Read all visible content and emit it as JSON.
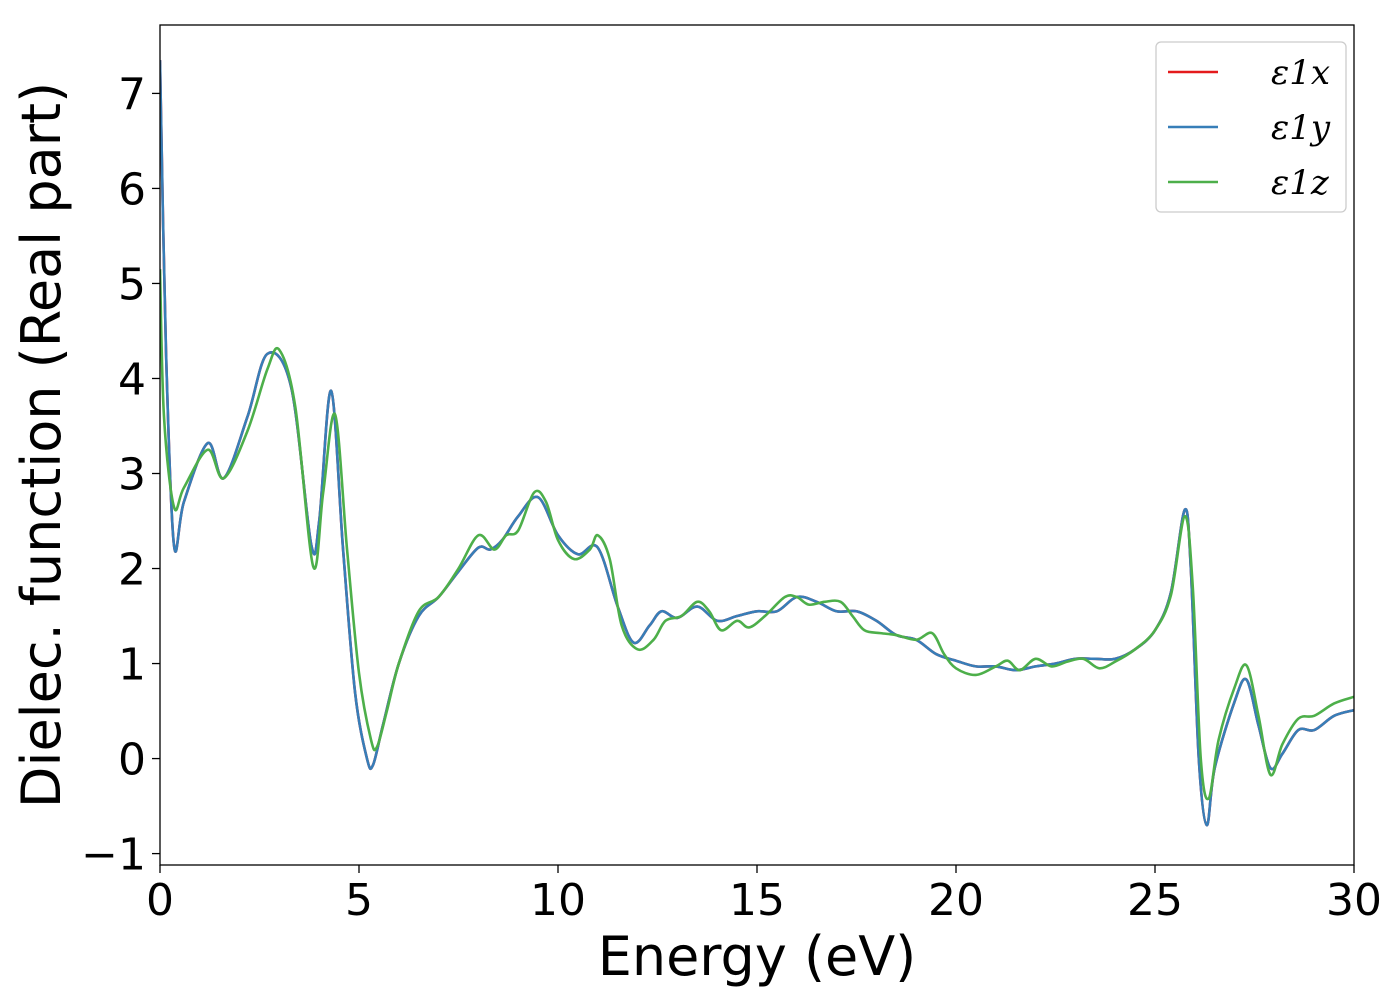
{
  "chart_data": {
    "type": "line",
    "xlabel": "Energy (eV)",
    "ylabel": "Dielec. function (Real part)",
    "xlim": [
      0,
      30
    ],
    "ylim": [
      -1.12,
      7.72
    ],
    "xticks": [
      0,
      5,
      10,
      15,
      20,
      25,
      30
    ],
    "xtick_labels": [
      "0",
      "5",
      "10",
      "15",
      "20",
      "25",
      "30"
    ],
    "yticks": [
      -1,
      0,
      1,
      2,
      3,
      4,
      5,
      6,
      7
    ],
    "ytick_labels": [
      "−1",
      "0",
      "1",
      "2",
      "3",
      "4",
      "5",
      "6",
      "7"
    ],
    "grid": false,
    "legend_position": "top-right",
    "series": [
      {
        "name": "ε1x",
        "color": "#e41a1c",
        "points": [
          [
            0.0,
            7.35
          ],
          [
            0.15,
            4.3
          ],
          [
            0.35,
            2.25
          ],
          [
            0.6,
            2.7
          ],
          [
            1.2,
            3.32
          ],
          [
            1.6,
            2.95
          ],
          [
            2.2,
            3.6
          ],
          [
            2.7,
            4.26
          ],
          [
            3.3,
            3.9
          ],
          [
            3.8,
            2.25
          ],
          [
            4.0,
            2.5
          ],
          [
            4.3,
            3.87
          ],
          [
            4.6,
            2.2
          ],
          [
            4.9,
            0.7
          ],
          [
            5.2,
            0.0
          ],
          [
            5.35,
            -0.07
          ],
          [
            5.6,
            0.35
          ],
          [
            6.0,
            1.0
          ],
          [
            6.5,
            1.5
          ],
          [
            7.0,
            1.7
          ],
          [
            7.5,
            1.97
          ],
          [
            8.0,
            2.22
          ],
          [
            8.3,
            2.2
          ],
          [
            8.6,
            2.3
          ],
          [
            9.0,
            2.55
          ],
          [
            9.5,
            2.75
          ],
          [
            10.0,
            2.35
          ],
          [
            10.5,
            2.15
          ],
          [
            11.0,
            2.22
          ],
          [
            11.5,
            1.6
          ],
          [
            11.9,
            1.22
          ],
          [
            12.3,
            1.4
          ],
          [
            12.6,
            1.55
          ],
          [
            13.0,
            1.48
          ],
          [
            13.5,
            1.6
          ],
          [
            14.0,
            1.45
          ],
          [
            14.5,
            1.5
          ],
          [
            15.0,
            1.55
          ],
          [
            15.5,
            1.55
          ],
          [
            16.0,
            1.7
          ],
          [
            16.5,
            1.65
          ],
          [
            17.0,
            1.55
          ],
          [
            17.5,
            1.55
          ],
          [
            18.0,
            1.45
          ],
          [
            18.5,
            1.3
          ],
          [
            19.0,
            1.25
          ],
          [
            19.5,
            1.1
          ],
          [
            20.0,
            1.03
          ],
          [
            20.5,
            0.97
          ],
          [
            21.0,
            0.97
          ],
          [
            21.5,
            0.93
          ],
          [
            22.0,
            0.97
          ],
          [
            22.5,
            1.0
          ],
          [
            23.0,
            1.05
          ],
          [
            23.5,
            1.05
          ],
          [
            24.0,
            1.05
          ],
          [
            24.5,
            1.15
          ],
          [
            25.0,
            1.35
          ],
          [
            25.4,
            1.75
          ],
          [
            25.75,
            2.62
          ],
          [
            25.9,
            2.0
          ],
          [
            26.1,
            0.0
          ],
          [
            26.3,
            -0.7
          ],
          [
            26.5,
            -0.1
          ],
          [
            27.0,
            0.6
          ],
          [
            27.3,
            0.83
          ],
          [
            27.6,
            0.35
          ],
          [
            27.9,
            -0.1
          ],
          [
            28.2,
            0.05
          ],
          [
            28.6,
            0.3
          ],
          [
            29.0,
            0.3
          ],
          [
            29.5,
            0.45
          ],
          [
            30.0,
            0.51
          ]
        ]
      },
      {
        "name": "ε1y",
        "color": "#377eb8",
        "points": [
          [
            0.0,
            7.35
          ],
          [
            0.15,
            4.3
          ],
          [
            0.35,
            2.25
          ],
          [
            0.6,
            2.7
          ],
          [
            1.2,
            3.32
          ],
          [
            1.6,
            2.95
          ],
          [
            2.2,
            3.6
          ],
          [
            2.7,
            4.26
          ],
          [
            3.3,
            3.9
          ],
          [
            3.8,
            2.25
          ],
          [
            4.0,
            2.5
          ],
          [
            4.3,
            3.87
          ],
          [
            4.6,
            2.2
          ],
          [
            4.9,
            0.7
          ],
          [
            5.2,
            0.0
          ],
          [
            5.35,
            -0.07
          ],
          [
            5.6,
            0.35
          ],
          [
            6.0,
            1.0
          ],
          [
            6.5,
            1.5
          ],
          [
            7.0,
            1.7
          ],
          [
            7.5,
            1.97
          ],
          [
            8.0,
            2.22
          ],
          [
            8.3,
            2.2
          ],
          [
            8.6,
            2.3
          ],
          [
            9.0,
            2.55
          ],
          [
            9.5,
            2.75
          ],
          [
            10.0,
            2.35
          ],
          [
            10.5,
            2.15
          ],
          [
            11.0,
            2.22
          ],
          [
            11.5,
            1.6
          ],
          [
            11.9,
            1.22
          ],
          [
            12.3,
            1.4
          ],
          [
            12.6,
            1.55
          ],
          [
            13.0,
            1.48
          ],
          [
            13.5,
            1.6
          ],
          [
            14.0,
            1.45
          ],
          [
            14.5,
            1.5
          ],
          [
            15.0,
            1.55
          ],
          [
            15.5,
            1.55
          ],
          [
            16.0,
            1.7
          ],
          [
            16.5,
            1.65
          ],
          [
            17.0,
            1.55
          ],
          [
            17.5,
            1.55
          ],
          [
            18.0,
            1.45
          ],
          [
            18.5,
            1.3
          ],
          [
            19.0,
            1.25
          ],
          [
            19.5,
            1.1
          ],
          [
            20.0,
            1.03
          ],
          [
            20.5,
            0.97
          ],
          [
            21.0,
            0.97
          ],
          [
            21.5,
            0.93
          ],
          [
            22.0,
            0.97
          ],
          [
            22.5,
            1.0
          ],
          [
            23.0,
            1.05
          ],
          [
            23.5,
            1.05
          ],
          [
            24.0,
            1.05
          ],
          [
            24.5,
            1.15
          ],
          [
            25.0,
            1.35
          ],
          [
            25.4,
            1.75
          ],
          [
            25.75,
            2.62
          ],
          [
            25.9,
            2.0
          ],
          [
            26.1,
            0.0
          ],
          [
            26.3,
            -0.7
          ],
          [
            26.5,
            -0.1
          ],
          [
            27.0,
            0.6
          ],
          [
            27.3,
            0.83
          ],
          [
            27.6,
            0.35
          ],
          [
            27.9,
            -0.1
          ],
          [
            28.2,
            0.05
          ],
          [
            28.6,
            0.3
          ],
          [
            29.0,
            0.3
          ],
          [
            29.5,
            0.45
          ],
          [
            30.0,
            0.51
          ]
        ]
      },
      {
        "name": "ε1z",
        "color": "#4daf4a",
        "points": [
          [
            0.0,
            5.15
          ],
          [
            0.1,
            3.6
          ],
          [
            0.35,
            2.65
          ],
          [
            0.6,
            2.85
          ],
          [
            1.2,
            3.25
          ],
          [
            1.6,
            2.95
          ],
          [
            2.2,
            3.45
          ],
          [
            2.7,
            4.1
          ],
          [
            3.0,
            4.3
          ],
          [
            3.4,
            3.7
          ],
          [
            3.85,
            2.02
          ],
          [
            4.1,
            2.8
          ],
          [
            4.4,
            3.62
          ],
          [
            4.7,
            2.2
          ],
          [
            5.0,
            0.9
          ],
          [
            5.3,
            0.2
          ],
          [
            5.45,
            0.12
          ],
          [
            5.7,
            0.5
          ],
          [
            6.0,
            1.0
          ],
          [
            6.5,
            1.55
          ],
          [
            7.0,
            1.7
          ],
          [
            7.5,
            2.0
          ],
          [
            8.0,
            2.35
          ],
          [
            8.4,
            2.2
          ],
          [
            8.7,
            2.35
          ],
          [
            9.0,
            2.4
          ],
          [
            9.4,
            2.8
          ],
          [
            9.7,
            2.7
          ],
          [
            10.0,
            2.3
          ],
          [
            10.4,
            2.1
          ],
          [
            10.8,
            2.2
          ],
          [
            11.0,
            2.35
          ],
          [
            11.3,
            2.1
          ],
          [
            11.6,
            1.4
          ],
          [
            12.0,
            1.15
          ],
          [
            12.4,
            1.25
          ],
          [
            12.7,
            1.45
          ],
          [
            13.1,
            1.5
          ],
          [
            13.5,
            1.65
          ],
          [
            13.8,
            1.55
          ],
          [
            14.1,
            1.35
          ],
          [
            14.5,
            1.45
          ],
          [
            14.8,
            1.38
          ],
          [
            15.2,
            1.5
          ],
          [
            15.7,
            1.7
          ],
          [
            16.0,
            1.7
          ],
          [
            16.3,
            1.62
          ],
          [
            16.7,
            1.65
          ],
          [
            17.1,
            1.65
          ],
          [
            17.4,
            1.5
          ],
          [
            17.7,
            1.35
          ],
          [
            18.1,
            1.32
          ],
          [
            18.5,
            1.3
          ],
          [
            19.0,
            1.25
          ],
          [
            19.4,
            1.32
          ],
          [
            19.7,
            1.1
          ],
          [
            20.0,
            0.95
          ],
          [
            20.5,
            0.88
          ],
          [
            21.0,
            0.97
          ],
          [
            21.3,
            1.03
          ],
          [
            21.6,
            0.93
          ],
          [
            22.0,
            1.05
          ],
          [
            22.4,
            0.97
          ],
          [
            22.8,
            1.02
          ],
          [
            23.2,
            1.05
          ],
          [
            23.6,
            0.95
          ],
          [
            24.0,
            1.02
          ],
          [
            24.5,
            1.15
          ],
          [
            25.0,
            1.35
          ],
          [
            25.4,
            1.72
          ],
          [
            25.75,
            2.55
          ],
          [
            25.95,
            1.8
          ],
          [
            26.15,
            0.0
          ],
          [
            26.35,
            -0.42
          ],
          [
            26.6,
            0.2
          ],
          [
            27.0,
            0.75
          ],
          [
            27.3,
            0.98
          ],
          [
            27.6,
            0.45
          ],
          [
            27.9,
            -0.17
          ],
          [
            28.2,
            0.15
          ],
          [
            28.6,
            0.42
          ],
          [
            29.0,
            0.45
          ],
          [
            29.5,
            0.58
          ],
          [
            30.0,
            0.65
          ]
        ]
      }
    ]
  }
}
